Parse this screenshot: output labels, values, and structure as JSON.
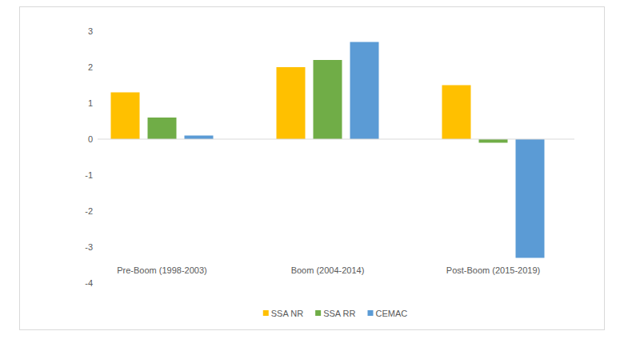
{
  "chart_data": {
    "type": "bar",
    "categories": [
      "Pre-Boom (1998-2003)",
      "Boom (2004-2014)",
      "Post-Boom (2015-2019)"
    ],
    "series": [
      {
        "name": "SSA NR",
        "color": "#ffc000",
        "values": [
          1.3,
          2.0,
          1.5
        ]
      },
      {
        "name": "SSA RR",
        "color": "#70ad47",
        "values": [
          0.6,
          2.2,
          -0.1
        ]
      },
      {
        "name": "CEMAC",
        "color": "#5b9bd5",
        "values": [
          0.1,
          2.7,
          -3.3
        ]
      }
    ],
    "ylim": [
      -4,
      3
    ],
    "yticks": [
      -4,
      -3,
      -2,
      -1,
      0,
      1,
      2,
      3
    ],
    "grid": false,
    "legend": "bottom"
  }
}
